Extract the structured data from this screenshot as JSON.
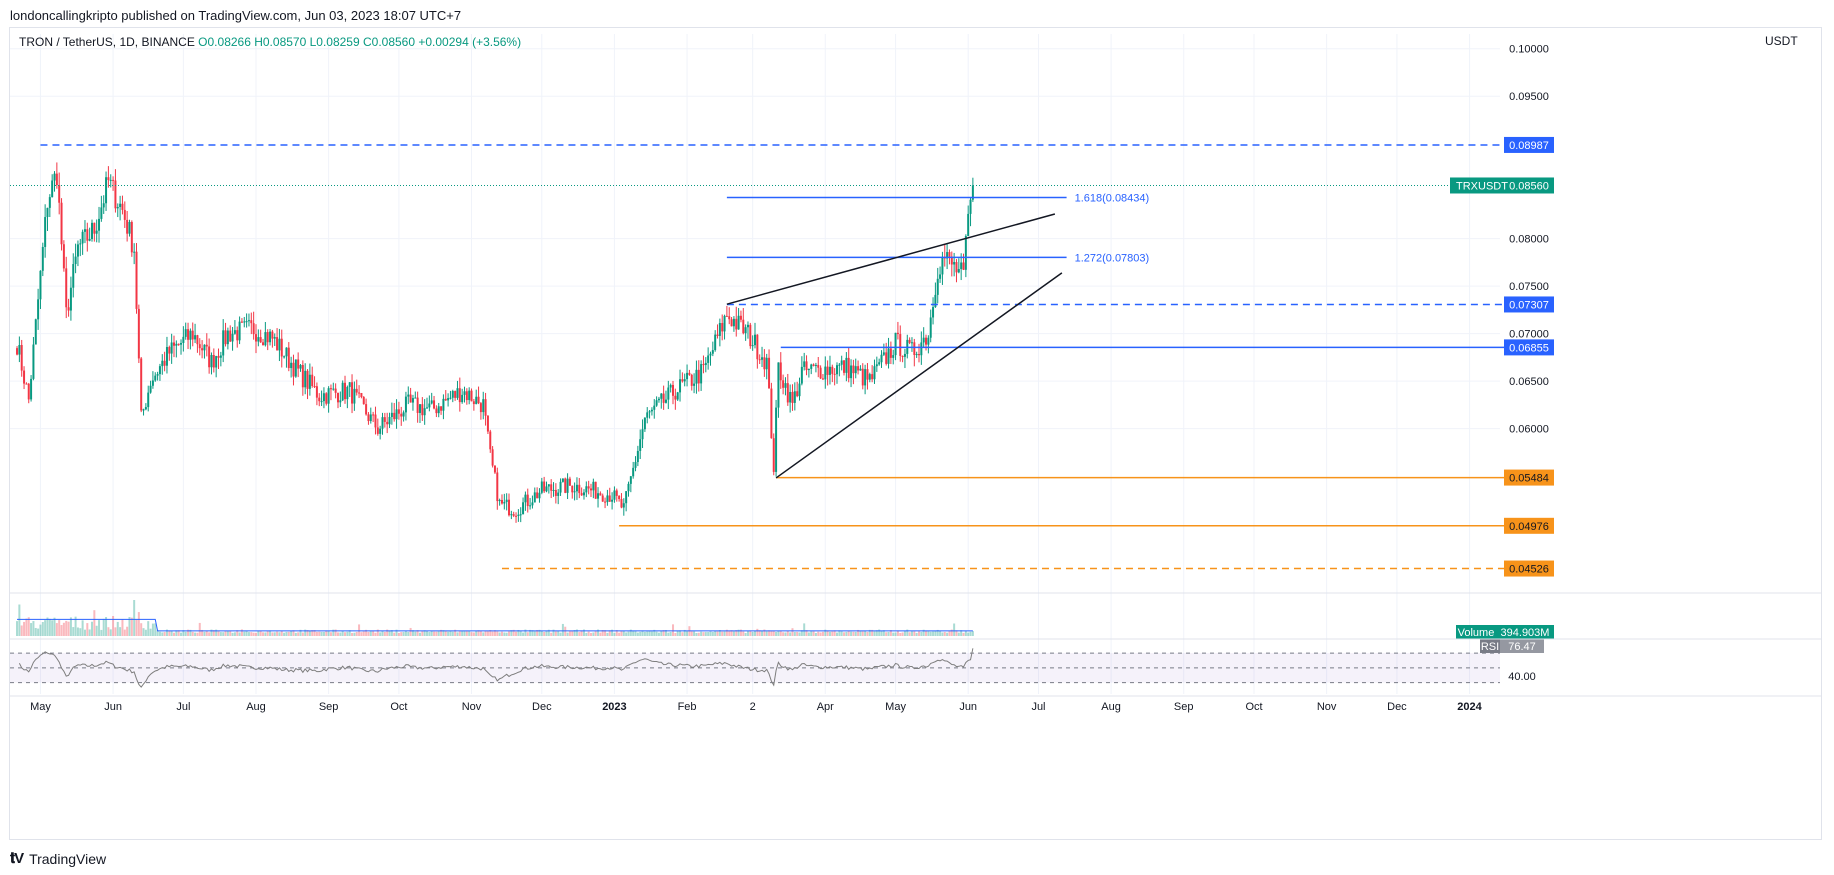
{
  "header": {
    "publisher": "londoncallingkripto published on TradingView.com, Jun 03, 2023 18:07 UTC+7",
    "symbol": "TRON / TetherUS, 1D, BINANCE",
    "ohlc": "O0.08266 H0.08570 L0.08259 C0.08560 +0.00294 (+3.56%)",
    "currency": "USDT"
  },
  "footer": {
    "brand": "TradingView",
    "brand_icon": "tradingview-logo-icon"
  },
  "colors": {
    "up": "#089981",
    "down": "#f23645",
    "blue": "#2962ff",
    "orange": "#f7931a",
    "volume_ma": "#2962ff",
    "rsi": "#7e7e7e",
    "rsi_band": "#7e57c2"
  },
  "chart_data": {
    "type": "candlestick",
    "price_axis": {
      "ylim": [
        0.043,
        0.1005
      ],
      "ticks": [
        "0.10000",
        "0.09500",
        "0.08000",
        "0.07500",
        "0.07000",
        "0.06500",
        "0.06000"
      ],
      "position": "right"
    },
    "time_axis": {
      "labels": [
        "May",
        "Jun",
        "Jul",
        "Aug",
        "Sep",
        "Oct",
        "Nov",
        "Dec",
        "2023",
        "Feb",
        "2",
        "Apr",
        "May",
        "Jun",
        "Jul",
        "Aug",
        "Sep",
        "Oct",
        "Nov",
        "Dec",
        "2024"
      ],
      "label_dates": [
        "2022-05-01",
        "2022-06-01",
        "2022-07-01",
        "2022-08-01",
        "2022-09-01",
        "2022-10-01",
        "2022-11-01",
        "2022-12-01",
        "2023-01-01",
        "2023-02-01",
        "2023-03-01",
        "2023-04-01",
        "2023-05-01",
        "2023-06-01",
        "2023-07-01",
        "2023-08-01",
        "2023-09-01",
        "2023-10-01",
        "2023-11-01",
        "2023-12-01",
        "2024-01-01"
      ]
    },
    "last_price": {
      "label": "TRXUSDT",
      "value": "0.08560"
    },
    "anchors": [
      {
        "date": "2022-04-21",
        "close": 0.069
      },
      {
        "date": "2022-04-26",
        "close": 0.063
      },
      {
        "date": "2022-05-04",
        "close": 0.084
      },
      {
        "date": "2022-05-08",
        "close": 0.087
      },
      {
        "date": "2022-05-12",
        "close": 0.072
      },
      {
        "date": "2022-05-17",
        "close": 0.079
      },
      {
        "date": "2022-05-24",
        "close": 0.081
      },
      {
        "date": "2022-05-30",
        "close": 0.086
      },
      {
        "date": "2022-06-05",
        "close": 0.083
      },
      {
        "date": "2022-06-10",
        "close": 0.079
      },
      {
        "date": "2022-06-13",
        "close": 0.061
      },
      {
        "date": "2022-06-17",
        "close": 0.065
      },
      {
        "date": "2022-06-25",
        "close": 0.068
      },
      {
        "date": "2022-07-05",
        "close": 0.07
      },
      {
        "date": "2022-07-13",
        "close": 0.067
      },
      {
        "date": "2022-07-20",
        "close": 0.07
      },
      {
        "date": "2022-07-31",
        "close": 0.0705
      },
      {
        "date": "2022-08-08",
        "close": 0.0695
      },
      {
        "date": "2022-08-19",
        "close": 0.066
      },
      {
        "date": "2022-08-28",
        "close": 0.0635
      },
      {
        "date": "2022-09-10",
        "close": 0.064
      },
      {
        "date": "2022-09-22",
        "close": 0.06
      },
      {
        "date": "2022-10-05",
        "close": 0.0625
      },
      {
        "date": "2022-10-15",
        "close": 0.062
      },
      {
        "date": "2022-10-28",
        "close": 0.064
      },
      {
        "date": "2022-11-06",
        "close": 0.0625
      },
      {
        "date": "2022-11-09",
        "close": 0.057
      },
      {
        "date": "2022-11-13",
        "close": 0.052
      },
      {
        "date": "2022-11-20",
        "close": 0.0515
      },
      {
        "date": "2022-12-01",
        "close": 0.0535
      },
      {
        "date": "2022-12-14",
        "close": 0.054
      },
      {
        "date": "2022-12-31",
        "close": 0.053
      },
      {
        "date": "2023-01-05",
        "close": 0.0515
      },
      {
        "date": "2023-01-14",
        "close": 0.061
      },
      {
        "date": "2023-01-27",
        "close": 0.064
      },
      {
        "date": "2023-02-08",
        "close": 0.066
      },
      {
        "date": "2023-02-18",
        "close": 0.072
      },
      {
        "date": "2023-02-27",
        "close": 0.07
      },
      {
        "date": "2023-03-07",
        "close": 0.067
      },
      {
        "date": "2023-03-10",
        "close": 0.056
      },
      {
        "date": "2023-03-12",
        "close": 0.0665
      },
      {
        "date": "2023-03-18",
        "close": 0.0625
      },
      {
        "date": "2023-03-22",
        "close": 0.066
      },
      {
        "date": "2023-04-10",
        "close": 0.0665
      },
      {
        "date": "2023-04-20",
        "close": 0.065
      },
      {
        "date": "2023-05-01",
        "close": 0.069
      },
      {
        "date": "2023-05-08",
        "close": 0.068
      },
      {
        "date": "2023-05-15",
        "close": 0.07
      },
      {
        "date": "2023-05-19",
        "close": 0.077
      },
      {
        "date": "2023-05-22",
        "close": 0.078
      },
      {
        "date": "2023-05-30",
        "close": 0.076
      },
      {
        "date": "2023-06-01",
        "close": 0.082
      },
      {
        "date": "2023-06-03",
        "close": 0.0856
      }
    ],
    "horizontal_levels": [
      {
        "label": "0.08987",
        "value": 0.08987,
        "color": "#2962ff",
        "style": "dashed",
        "from": "2022-05-01"
      },
      {
        "label": "0.07307",
        "value": 0.07307,
        "color": "#2962ff",
        "style": "dashed",
        "from": "2023-02-18"
      },
      {
        "label": "0.06855",
        "value": 0.06855,
        "color": "#2962ff",
        "style": "solid",
        "from": "2023-03-13"
      },
      {
        "label": "0.05484",
        "value": 0.05484,
        "color": "#f7931a",
        "style": "solid",
        "from": "2023-03-11"
      },
      {
        "label": "0.04976",
        "value": 0.04976,
        "color": "#f7931a",
        "style": "solid",
        "from": "2023-01-03"
      },
      {
        "label": "0.04526",
        "value": 0.04526,
        "color": "#f7931a",
        "style": "dashed",
        "from": "2022-11-14"
      }
    ],
    "fib_levels": [
      {
        "label": "1.618(0.08434)",
        "value": 0.08434,
        "from": "2023-02-18",
        "to": "2023-07-13"
      },
      {
        "label": "1.272(0.07803)",
        "value": 0.07803,
        "from": "2023-02-18",
        "to": "2023-07-13"
      }
    ],
    "trendlines": [
      {
        "from": {
          "date": "2023-02-18",
          "value": 0.0731
        },
        "to": {
          "date": "2023-07-08",
          "value": 0.0826
        }
      },
      {
        "from": {
          "date": "2023-03-11",
          "value": 0.0548
        },
        "to": {
          "date": "2023-07-11",
          "value": 0.0764
        }
      }
    ],
    "volume": {
      "label": "Volume",
      "value": "394.903M"
    },
    "rsi": {
      "label": "RSI",
      "value": "76.47",
      "band_upper": 70,
      "band_lower": 30,
      "axis_tick": "40.00"
    }
  }
}
